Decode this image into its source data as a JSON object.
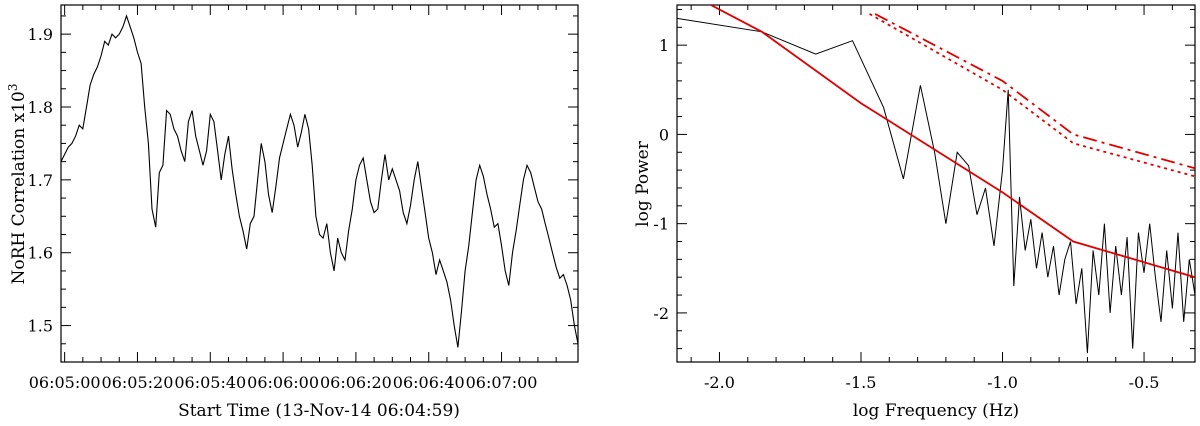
{
  "chart_data": [
    {
      "type": "line",
      "title": "",
      "xlabel": "Start Time (13-Nov-14 06:04:59)",
      "ylabel": "NoRH Correlation x10",
      "ylabel_superscript": "3",
      "x_unit": "seconds after 06:04:59",
      "xlim": [
        0,
        142
      ],
      "ylim": [
        1.45,
        1.94
      ],
      "xticks": [
        1,
        21,
        41,
        61,
        81,
        101,
        121
      ],
      "xtick_labels": [
        "06:05:00",
        "06:05:20",
        "06:05:40",
        "06:06:00",
        "06:06:20",
        "06:06:40",
        "06:07:00"
      ],
      "yticks": [
        1.5,
        1.6,
        1.7,
        1.8,
        1.9
      ],
      "ytick_labels": [
        "1.5",
        "1.6",
        "1.7",
        "1.8",
        "1.9"
      ],
      "grid": false,
      "series": [
        {
          "color": "#000000",
          "x": [
            0,
            1,
            2,
            3,
            4,
            5,
            6,
            7,
            8,
            9,
            10,
            11,
            12,
            13,
            14,
            15,
            16,
            17,
            18,
            19,
            20,
            21,
            22,
            23,
            24,
            25,
            26,
            27,
            28,
            29,
            30,
            31,
            32,
            33,
            34,
            35,
            36,
            37,
            38,
            39,
            40,
            41,
            42,
            43,
            44,
            45,
            46,
            47,
            48,
            49,
            50,
            51,
            52,
            53,
            54,
            55,
            56,
            57,
            58,
            59,
            60,
            61,
            62,
            63,
            64,
            65,
            66,
            67,
            68,
            69,
            70,
            71,
            72,
            73,
            74,
            75,
            76,
            77,
            78,
            79,
            80,
            81,
            82,
            83,
            84,
            85,
            86,
            87,
            88,
            89,
            90,
            91,
            92,
            93,
            94,
            95,
            96,
            97,
            98,
            99,
            100,
            101,
            102,
            103,
            104,
            105,
            106,
            107,
            108,
            109,
            110,
            111,
            112,
            113,
            114,
            115,
            116,
            117,
            118,
            119,
            120,
            121,
            122,
            123,
            124,
            125,
            126,
            127,
            128,
            129,
            130,
            131,
            132,
            133,
            134,
            135,
            136,
            137,
            138,
            139,
            140,
            141,
            142
          ],
          "y": [
            1.725,
            1.735,
            1.745,
            1.75,
            1.76,
            1.775,
            1.77,
            1.8,
            1.83,
            1.845,
            1.855,
            1.87,
            1.89,
            1.885,
            1.9,
            1.895,
            1.9,
            1.91,
            1.925,
            1.91,
            1.895,
            1.875,
            1.86,
            1.8,
            1.75,
            1.66,
            1.635,
            1.71,
            1.72,
            1.795,
            1.79,
            1.77,
            1.76,
            1.74,
            1.725,
            1.78,
            1.795,
            1.76,
            1.74,
            1.72,
            1.74,
            1.79,
            1.78,
            1.74,
            1.7,
            1.735,
            1.76,
            1.715,
            1.68,
            1.65,
            1.63,
            1.605,
            1.64,
            1.65,
            1.7,
            1.75,
            1.725,
            1.68,
            1.655,
            1.69,
            1.73,
            1.75,
            1.77,
            1.79,
            1.775,
            1.745,
            1.765,
            1.79,
            1.77,
            1.72,
            1.65,
            1.625,
            1.62,
            1.64,
            1.6,
            1.575,
            1.62,
            1.6,
            1.59,
            1.63,
            1.66,
            1.7,
            1.72,
            1.73,
            1.7,
            1.67,
            1.655,
            1.66,
            1.7,
            1.735,
            1.7,
            1.715,
            1.7,
            1.685,
            1.655,
            1.64,
            1.665,
            1.7,
            1.725,
            1.69,
            1.655,
            1.62,
            1.6,
            1.57,
            1.59,
            1.575,
            1.56,
            1.535,
            1.5,
            1.47,
            1.52,
            1.575,
            1.61,
            1.655,
            1.7,
            1.72,
            1.705,
            1.68,
            1.66,
            1.635,
            1.64,
            1.61,
            1.575,
            1.555,
            1.6,
            1.63,
            1.665,
            1.7,
            1.72,
            1.71,
            1.69,
            1.67,
            1.66,
            1.64,
            1.62,
            1.6,
            1.58,
            1.565,
            1.57,
            1.555,
            1.535,
            1.5,
            1.475
          ]
        }
      ]
    },
    {
      "type": "line",
      "title": "",
      "xlabel": "log Frequency (Hz)",
      "ylabel": "log Power",
      "xlim": [
        -2.15,
        -0.32
      ],
      "ylim": [
        -2.55,
        1.45
      ],
      "xticks": [
        -2.0,
        -1.5,
        -1.0,
        -0.5
      ],
      "xtick_labels": [
        "-2.0",
        "-1.5",
        "-1.0",
        "-0.5"
      ],
      "yticks": [
        -2,
        -1,
        0,
        1
      ],
      "ytick_labels": [
        "-2",
        "-1",
        "0",
        "1"
      ],
      "grid": false,
      "series": [
        {
          "color": "#000000",
          "style": "solid-thin",
          "x": [
            -2.15,
            -1.85,
            -1.66,
            -1.53,
            -1.42,
            -1.35,
            -1.29,
            -1.24,
            -1.2,
            -1.16,
            -1.12,
            -1.09,
            -1.06,
            -1.03,
            -1.0,
            -0.98,
            -0.96,
            -0.94,
            -0.92,
            -0.9,
            -0.88,
            -0.86,
            -0.84,
            -0.82,
            -0.8,
            -0.78,
            -0.76,
            -0.74,
            -0.72,
            -0.7,
            -0.68,
            -0.66,
            -0.64,
            -0.62,
            -0.6,
            -0.58,
            -0.56,
            -0.54,
            -0.52,
            -0.5,
            -0.48,
            -0.46,
            -0.44,
            -0.42,
            -0.4,
            -0.38,
            -0.36,
            -0.34,
            -0.32
          ],
          "y": [
            1.3,
            1.15,
            0.9,
            1.05,
            0.3,
            -0.5,
            0.55,
            -0.2,
            -1.0,
            -0.2,
            -0.35,
            -0.9,
            -0.6,
            -1.25,
            -0.4,
            0.5,
            -1.7,
            -0.7,
            -1.3,
            -0.95,
            -1.5,
            -1.1,
            -1.6,
            -1.25,
            -1.8,
            -1.4,
            -1.2,
            -1.9,
            -1.5,
            -2.45,
            -1.3,
            -1.8,
            -1.0,
            -2.0,
            -1.25,
            -1.8,
            -1.15,
            -2.4,
            -1.1,
            -1.55,
            -1.0,
            -1.6,
            -2.1,
            -1.3,
            -1.95,
            -1.1,
            -2.1,
            -1.4,
            -1.8
          ]
        },
        {
          "color": "#e00000",
          "style": "solid",
          "x": [
            -2.15,
            -1.85,
            -1.5,
            -1.0,
            -0.75,
            -0.32
          ],
          "y": [
            1.65,
            1.15,
            0.35,
            -0.65,
            -1.2,
            -1.6
          ]
        },
        {
          "color": "#e00000",
          "style": "dashed",
          "x": [
            -1.45,
            -1.0,
            -0.75,
            -0.32
          ],
          "y": [
            1.35,
            0.6,
            0.0,
            -0.38
          ]
        },
        {
          "color": "#e00000",
          "style": "dotted",
          "x": [
            -1.47,
            -1.0,
            -0.75,
            -0.32
          ],
          "y": [
            1.35,
            0.5,
            -0.1,
            -0.47
          ]
        }
      ]
    }
  ]
}
